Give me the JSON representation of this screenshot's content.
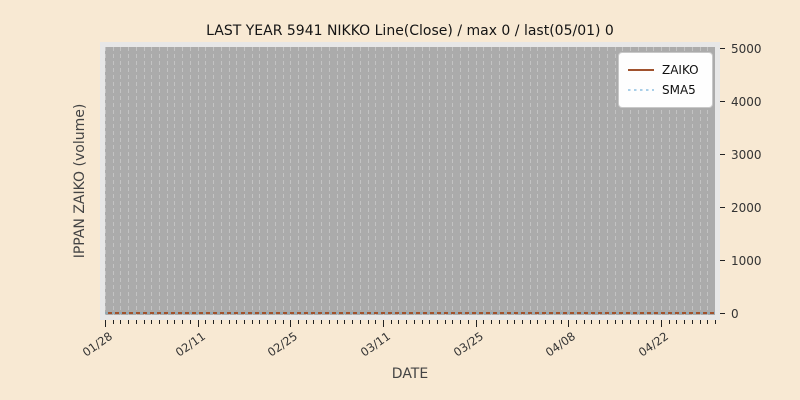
{
  "chart_data": {
    "type": "line",
    "title": "LAST YEAR 5941 NIKKO Line(Close) / max 0 / last(05/01) 0",
    "xlabel": "DATE",
    "ylabel": "IPPAN ZAIKO (volume)",
    "x_tick_labels": [
      "01/28",
      "02/11",
      "02/25",
      "03/11",
      "03/25",
      "04/08",
      "04/22"
    ],
    "x_range": [
      "01/28",
      "05/01"
    ],
    "x_total_points": 79,
    "x_major_interval": 12,
    "y_ticks": [
      0,
      1000,
      2000,
      3000,
      4000,
      5000
    ],
    "ylim": [
      0,
      5000
    ],
    "y_axis_side": "right",
    "grid": {
      "vertical": "dashed-per-day",
      "horizontal": "none"
    },
    "series": [
      {
        "name": "ZAIKO",
        "line_style": "solid",
        "color": "#a0522d",
        "constant_value": 0
      },
      {
        "name": "SMA5",
        "line_style": "dotted",
        "color": "#a9cfe8",
        "constant_value": 0
      }
    ],
    "legend": {
      "position": "upper-right",
      "entries": [
        "ZAIKO",
        "SMA5"
      ]
    },
    "stats": {
      "max": 0,
      "last_date": "05/01",
      "last_value": 0
    }
  },
  "colors": {
    "background": "#f8e9d3",
    "plot_bg": "#ababab",
    "plot_frame": "#e7e7e7",
    "gridline": "#c3c3c3",
    "tick_text": "#333333",
    "axis_label_text": "#444444",
    "zaiko_line": "#a0522d",
    "sma5_line": "#a9cfe8",
    "sma5_overlap_on_line": "#93a9b4"
  }
}
